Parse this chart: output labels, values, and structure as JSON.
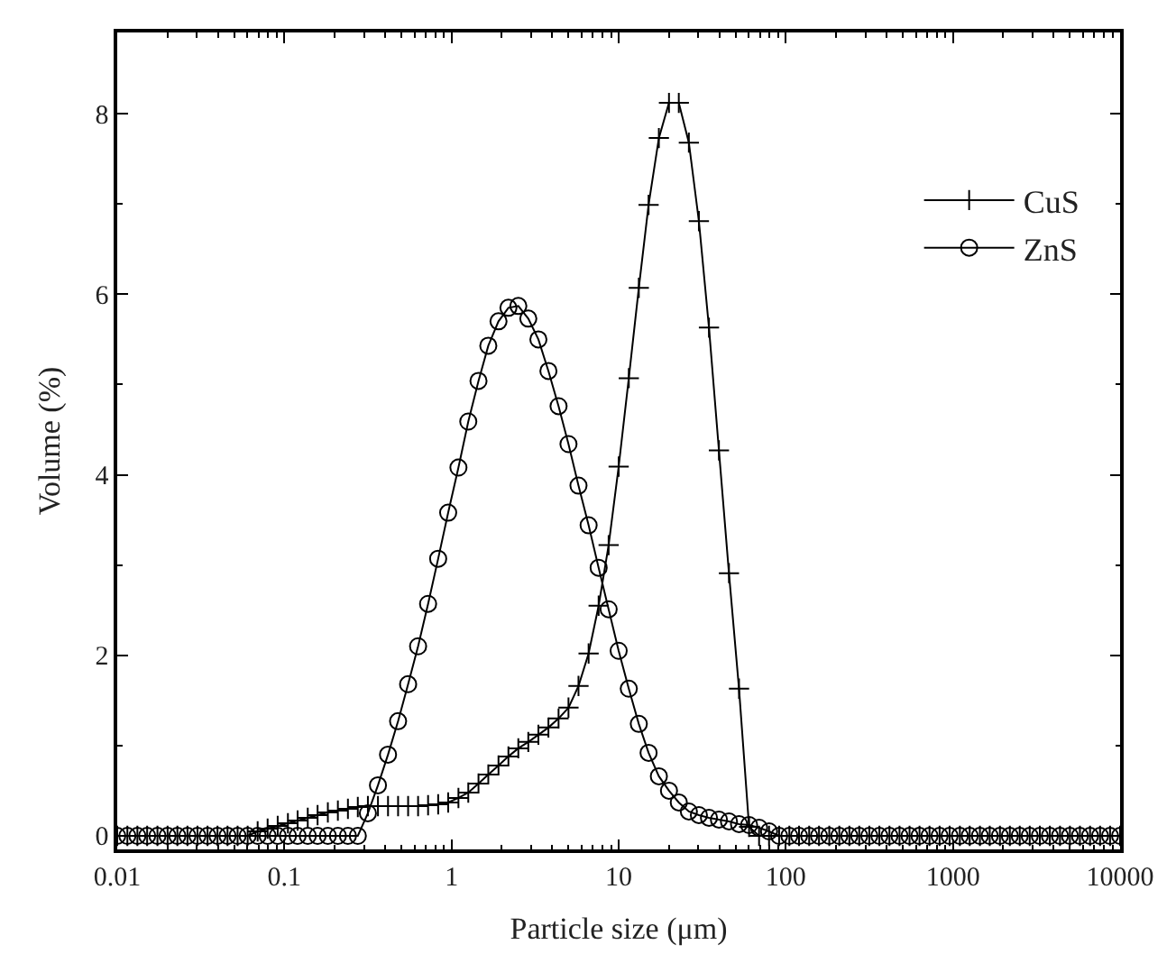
{
  "chart_data": {
    "type": "line",
    "xlabel": "Particle size (μm)",
    "ylabel": "Volume (%)",
    "log": "x",
    "x": [
      0.01,
      0.0115,
      0.0132,
      0.0151,
      0.0174,
      0.02,
      0.0229,
      0.0263,
      0.0302,
      0.0347,
      0.0398,
      0.0457,
      0.0525,
      0.0603,
      0.0692,
      0.0794,
      0.0912,
      0.105,
      0.12,
      0.138,
      0.158,
      0.182,
      0.209,
      0.24,
      0.275,
      0.316,
      0.363,
      0.417,
      0.479,
      0.55,
      0.631,
      0.724,
      0.832,
      0.955,
      1.1,
      1.26,
      1.45,
      1.66,
      1.91,
      2.19,
      2.51,
      2.88,
      3.31,
      3.8,
      4.37,
      5.01,
      5.75,
      6.61,
      7.59,
      8.71,
      10,
      11.5,
      13.2,
      15.1,
      17.4,
      20,
      22.9,
      26.3,
      30.2,
      34.7,
      39.8,
      45.7,
      52.5,
      60.3,
      69.2,
      79.4,
      91.2,
      105,
      120,
      138,
      158,
      182,
      209,
      240,
      275,
      316,
      363,
      417,
      479,
      550,
      631,
      724,
      832,
      955,
      1100,
      1260,
      1450,
      1660,
      1910,
      2190,
      2510,
      2880,
      3310,
      3800,
      4370,
      5010,
      5750,
      6610,
      7590,
      8710,
      10000
    ],
    "series": [
      {
        "name": "CuS",
        "color": "#000000",
        "marker": "cross",
        "values": [
          0,
          0,
          0,
          0,
          0,
          0,
          0,
          0,
          0,
          0,
          0,
          0,
          0,
          0,
          0.05,
          0.08,
          0.11,
          0.14,
          0.17,
          0.2,
          0.23,
          0.26,
          0.28,
          0.3,
          0.32,
          0.33,
          0.33,
          0.33,
          0.33,
          0.33,
          0.33,
          0.34,
          0.35,
          0.37,
          0.42,
          0.48,
          0.58,
          0.68,
          0.78,
          0.88,
          0.97,
          1.04,
          1.12,
          1.2,
          1.3,
          1.42,
          1.66,
          2.02,
          2.55,
          3.22,
          4.09,
          5.07,
          6.07,
          6.99,
          7.73,
          8.12,
          8.12,
          7.68,
          6.81,
          5.63,
          4.27,
          2.91,
          1.63,
          0.1,
          0,
          0,
          0,
          0,
          0,
          0,
          0,
          0,
          0,
          0,
          0,
          0,
          0,
          0,
          0,
          0,
          0,
          0,
          0,
          0,
          0,
          0,
          0,
          0,
          0,
          0,
          0,
          0,
          0,
          0,
          0,
          0,
          0,
          0,
          0,
          0,
          0
        ]
      },
      {
        "name": "ZnS",
        "color": "#000000",
        "marker": "circle",
        "values": [
          0,
          0,
          0,
          0,
          0,
          0,
          0,
          0,
          0,
          0,
          0,
          0,
          0,
          0,
          0,
          0,
          0,
          0,
          0,
          0,
          0,
          0,
          0,
          0,
          0,
          0.25,
          0.56,
          0.9,
          1.27,
          1.68,
          2.1,
          2.57,
          3.07,
          3.58,
          4.08,
          4.59,
          5.04,
          5.43,
          5.7,
          5.85,
          5.87,
          5.73,
          5.5,
          5.15,
          4.76,
          4.34,
          3.88,
          3.44,
          2.97,
          2.51,
          2.05,
          1.63,
          1.24,
          0.92,
          0.66,
          0.5,
          0.37,
          0.27,
          0.23,
          0.2,
          0.18,
          0.16,
          0.13,
          0.12,
          0.09,
          0.05,
          0,
          0,
          0,
          0,
          0,
          0,
          0,
          0,
          0,
          0,
          0,
          0,
          0,
          0,
          0,
          0,
          0,
          0,
          0,
          0,
          0,
          0,
          0,
          0,
          0,
          0,
          0,
          0,
          0,
          0,
          0,
          0,
          0,
          0,
          0
        ]
      }
    ],
    "xlim": [
      0.01,
      10000
    ],
    "xticks": [
      {
        "value": 0.01,
        "label": "0.01"
      },
      {
        "value": 0.02,
        "label": null
      },
      {
        "value": 0.03,
        "label": null
      },
      {
        "value": 0.04,
        "label": null
      },
      {
        "value": 0.05,
        "label": null
      },
      {
        "value": 0.06,
        "label": null
      },
      {
        "value": 0.07,
        "label": null
      },
      {
        "value": 0.08,
        "label": null
      },
      {
        "value": 0.09,
        "label": null
      },
      {
        "value": 0.1,
        "label": "0.1"
      },
      {
        "value": 0.2,
        "label": null
      },
      {
        "value": 0.3,
        "label": null
      },
      {
        "value": 0.4,
        "label": null
      },
      {
        "value": 0.5,
        "label": null
      },
      {
        "value": 0.6,
        "label": null
      },
      {
        "value": 0.7,
        "label": null
      },
      {
        "value": 0.8,
        "label": null
      },
      {
        "value": 0.9,
        "label": null
      },
      1,
      {
        "value": 2,
        "label": null
      },
      {
        "value": 3,
        "label": null
      },
      {
        "value": 4,
        "label": null
      },
      {
        "value": 5,
        "label": null
      },
      {
        "value": 6,
        "label": null
      },
      {
        "value": 7,
        "label": null
      },
      {
        "value": 8,
        "label": null
      },
      {
        "value": 9,
        "label": null
      },
      10,
      {
        "value": 20,
        "label": null
      },
      {
        "value": 30,
        "label": null
      },
      {
        "value": 40,
        "label": null
      },
      {
        "value": 50,
        "label": null
      },
      {
        "value": 60,
        "label": null
      },
      {
        "value": 70,
        "label": null
      },
      {
        "value": 80,
        "label": null
      },
      {
        "value": 90,
        "label": null
      },
      100,
      {
        "value": 200,
        "label": null
      },
      {
        "value": 300,
        "label": null
      },
      {
        "value": 400,
        "label": null
      },
      {
        "value": 500,
        "label": null
      },
      {
        "value": 600,
        "label": null
      },
      {
        "value": 700,
        "label": null
      },
      {
        "value": 800,
        "label": null
      },
      {
        "value": 900,
        "label": null
      },
      1000,
      {
        "value": 2000,
        "label": null
      },
      {
        "value": 3000,
        "label": null
      },
      {
        "value": 4000,
        "label": null
      },
      {
        "value": 5000,
        "label": null
      },
      {
        "value": 6000,
        "label": null
      },
      {
        "value": 7000,
        "label": null
      },
      {
        "value": 8000,
        "label": null
      },
      {
        "value": 9000,
        "label": null
      },
      10000
    ],
    "ylim": [
      -0.15,
      8.9
    ],
    "yticks": [
      0,
      {
        "value": 1,
        "label": null
      },
      2,
      {
        "value": 3,
        "label": null
      },
      4,
      {
        "value": 5,
        "label": null
      },
      6,
      {
        "value": 7,
        "label": null
      },
      8
    ],
    "legend": "top right",
    "line_style": "solid"
  }
}
